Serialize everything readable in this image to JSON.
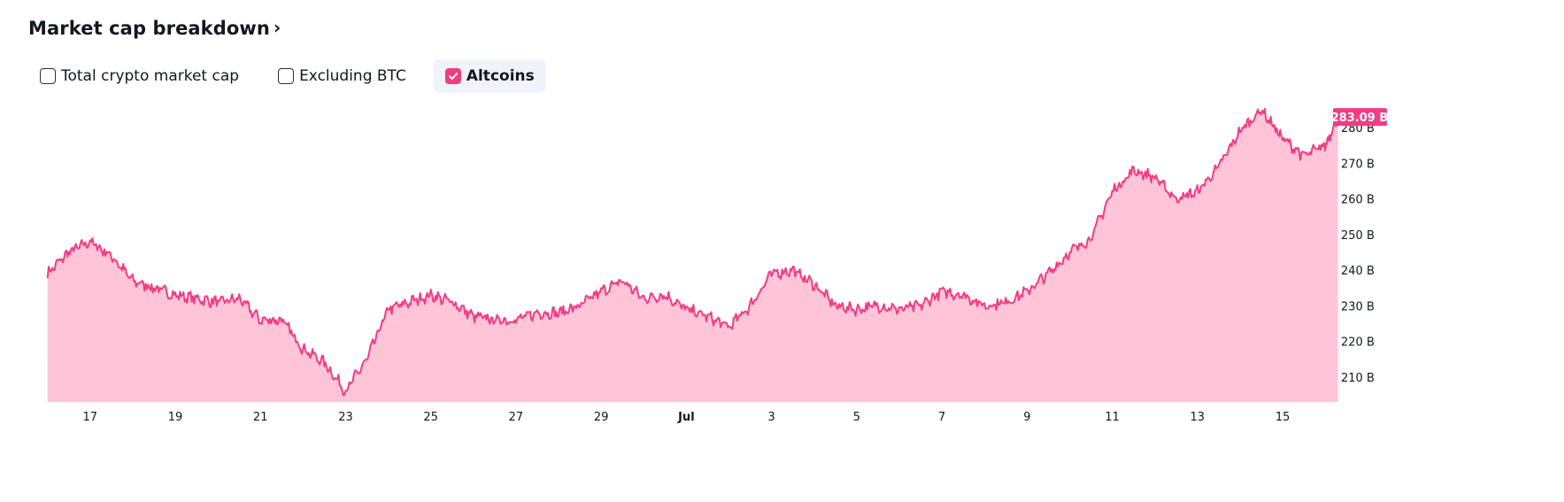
{
  "header": {
    "title": "Market cap breakdown",
    "chevron": "›"
  },
  "toggles": [
    {
      "label": "Total crypto market cap",
      "checked": false
    },
    {
      "label": "Excluding BTC",
      "checked": false
    },
    {
      "label": "Altcoins",
      "checked": true
    }
  ],
  "colors": {
    "line": "#f23d84",
    "fill": "#ffc4d8",
    "active_toggle_bg": "#f0f3fa"
  },
  "chart_data": {
    "type": "area",
    "series": [
      {
        "x": [
          "Jun 16",
          "Jun 16.5",
          "Jun 17",
          "Jun 17.5",
          "Jun 18",
          "Jun 18.5",
          "Jun 19",
          "Jun 19.5",
          "Jun 20",
          "Jun 20.5",
          "Jun 21",
          "Jun 21.5",
          "Jun 22",
          "Jun 22.5",
          "Jun 23",
          "Jun 23.5",
          "Jun 24",
          "Jun 24.5",
          "Jun 25",
          "Jun 25.5",
          "Jun 26",
          "Jun 26.5",
          "Jun 27",
          "Jun 27.5",
          "Jun 28",
          "Jun 28.5",
          "Jun 29",
          "Jun 29.5",
          "Jun 30",
          "Jun 30.5",
          "Jul 1",
          "Jul 1.5",
          "Jul 2",
          "Jul 2.5",
          "Jul 3",
          "Jul 3.5",
          "Jul 4",
          "Jul 4.5",
          "Jul 5",
          "Jul 5.5",
          "Jul 6",
          "Jul 6.5",
          "Jul 7",
          "Jul 7.5",
          "Jul 8",
          "Jul 8.5",
          "Jul 9",
          "Jul 9.5",
          "Jul 10",
          "Jul 10.5",
          "Jul 11",
          "Jul 11.5",
          "Jul 12",
          "Jul 12.5",
          "Jul 13",
          "Jul 13.5",
          "Jul 14",
          "Jul 14.5",
          "Jul 15",
          "Jul 15.5",
          "Jul 16",
          "Jul 16.3"
        ],
        "values": [
          239,
          245,
          248,
          244,
          237,
          235,
          233,
          232,
          231,
          232,
          226,
          226,
          218,
          214,
          206,
          215,
          229,
          231,
          233,
          231,
          227,
          226,
          226,
          228,
          228,
          230,
          234,
          237,
          232,
          233,
          229,
          227,
          224,
          230,
          239,
          240,
          236,
          230,
          229,
          230,
          229,
          230,
          234,
          233,
          230,
          231,
          234,
          239,
          245,
          249,
          262,
          268,
          266,
          260,
          262,
          269,
          279,
          285,
          277,
          272,
          275,
          283
        ]
      }
    ],
    "x_ticks": [
      "17",
      "19",
      "21",
      "23",
      "25",
      "27",
      "29",
      "Jul",
      "3",
      "5",
      "7",
      "9",
      "11",
      "13",
      "15"
    ],
    "y_ticks": [
      "210 B",
      "220 B",
      "230 B",
      "240 B",
      "250 B",
      "260 B",
      "270 B",
      "280 B"
    ],
    "ylim": [
      203,
      286
    ],
    "last_value_label": "283.09 B",
    "ylabel_position": "right"
  }
}
